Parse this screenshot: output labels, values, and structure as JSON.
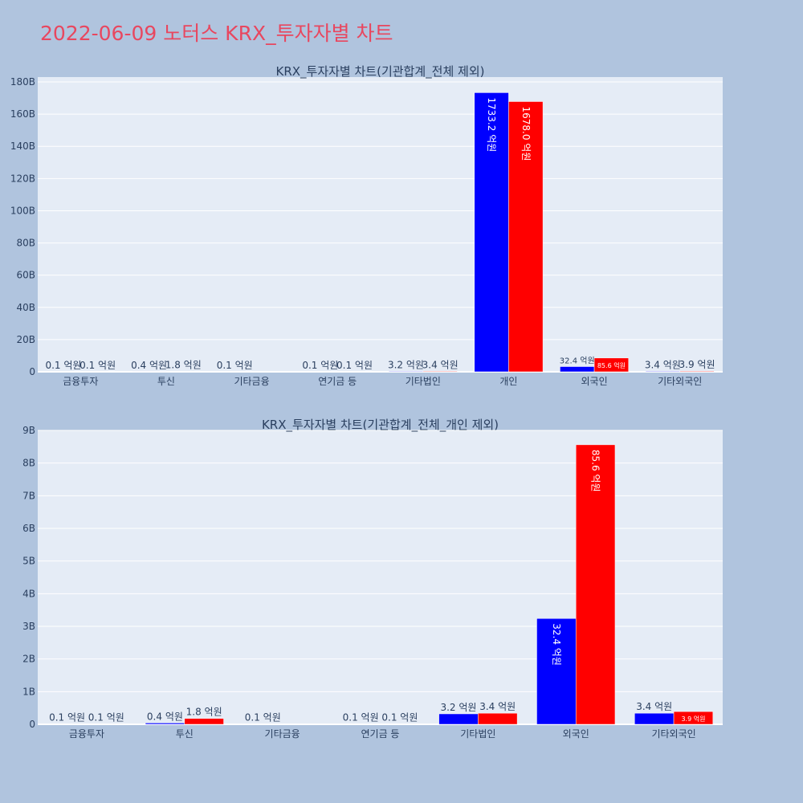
{
  "page": {
    "title": "2022-06-09 노터스 KRX_투자자별 차트"
  },
  "colors": {
    "buy": "#0000ff",
    "sell": "#ff0000",
    "plot_bg": "#e5ecf6",
    "page_bg": "#b0c4de"
  },
  "chart_data": [
    {
      "type": "bar",
      "title": "KRX_투자자별 차트(기관합계_전체 제외)",
      "categories": [
        "금융투자",
        "투신",
        "기타금융",
        "연기금 등",
        "기타법인",
        "개인",
        "외국인",
        "기타외국인"
      ],
      "series": [
        {
          "color": "#0000ff",
          "values": [
            0.01,
            0.04,
            0.01,
            0.01,
            0.32,
            173.32,
            3.24,
            0.34
          ],
          "labels": [
            "0.1 억원",
            "0.4 억원",
            "0.1 억원",
            "0.1 억원",
            "3.2 억원",
            "1733.2 억원",
            "32.4 억원",
            "3.4 억원"
          ]
        },
        {
          "color": "#ff0000",
          "values": [
            0.01,
            0.18,
            0,
            0.01,
            0.34,
            167.8,
            8.56,
            0.39
          ],
          "labels": [
            "0.1 억원",
            "1.8 억원",
            "",
            "0.1 억원",
            "3.4 억원",
            "1678.0 억원",
            "85.6 억원",
            "3.9 억원"
          ]
        }
      ],
      "yticks": [
        "0",
        "20B",
        "40B",
        "60B",
        "80B",
        "100B",
        "120B",
        "140B",
        "160B",
        "180B"
      ],
      "ytick_values": [
        0,
        20,
        40,
        60,
        80,
        100,
        120,
        140,
        160,
        180
      ],
      "ylim": [
        0,
        183
      ],
      "grid": true,
      "legend": "none"
    },
    {
      "type": "bar",
      "title": "KRX_투자자별 차트(기관합계_전체_개인 제외)",
      "categories": [
        "금융투자",
        "투신",
        "기타금융",
        "연기금 등",
        "기타법인",
        "외국인",
        "기타외국인"
      ],
      "series": [
        {
          "color": "#0000ff",
          "values": [
            0.01,
            0.04,
            0.01,
            0.01,
            0.32,
            3.24,
            0.34
          ],
          "labels": [
            "0.1 억원",
            "0.4 억원",
            "0.1 억원",
            "0.1 억원",
            "3.2 억원",
            "32.4 억원",
            "3.4 억원"
          ]
        },
        {
          "color": "#ff0000",
          "values": [
            0.01,
            0.18,
            0,
            0.01,
            0.34,
            8.56,
            0.39
          ],
          "labels": [
            "0.1 억원",
            "1.8 억원",
            "",
            "0.1 억원",
            "3.4 억원",
            "85.6 억원",
            "3.9 억원"
          ]
        }
      ],
      "yticks": [
        "0",
        "1B",
        "2B",
        "3B",
        "4B",
        "5B",
        "6B",
        "7B",
        "8B",
        "9B"
      ],
      "ytick_values": [
        0,
        1,
        2,
        3,
        4,
        5,
        6,
        7,
        8,
        9
      ],
      "ylim": [
        0,
        9.0
      ],
      "grid": true,
      "legend": "none"
    }
  ]
}
